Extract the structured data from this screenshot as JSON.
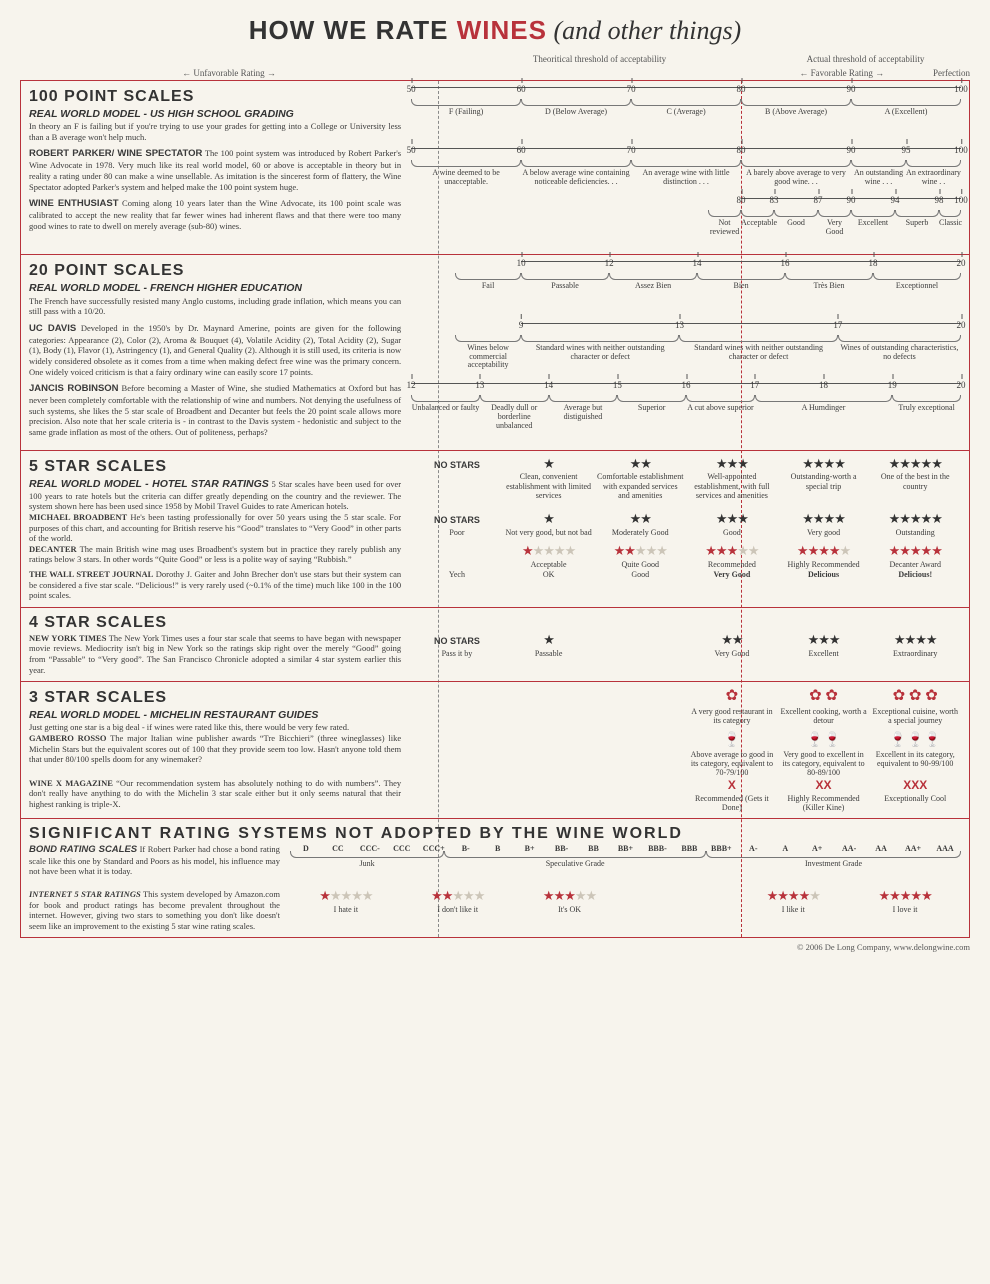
{
  "title_pre": "HOW WE RATE ",
  "title_red": "WINES",
  "title_post": " (and other things)",
  "legend": {
    "unfav": "← Unfavorable Rating →",
    "theory": "Theoritical threshold of acceptability",
    "actual": "Actual threshold of acceptability",
    "fav": "← Favorable Rating →",
    "perf": "Perfection"
  },
  "layout": {
    "theory_pct": 44,
    "actual_pct": 76
  },
  "s100": {
    "head": "100 POINT SCALES",
    "model": "REAL WORLD MODEL - US HIGH SCHOOL GRADING",
    "model_desc": "In theory an F is failing but if you're trying to use your grades for getting into a College or University less than a B average won't help much.",
    "hs": {
      "ticks": [
        {
          "v": "50",
          "p": 0
        },
        {
          "v": "60",
          "p": 20
        },
        {
          "v": "70",
          "p": 40
        },
        {
          "v": "80",
          "p": 60
        },
        {
          "v": "90",
          "p": 80
        },
        {
          "v": "100",
          "p": 100
        }
      ],
      "brackets": [
        {
          "l": "F (Failing)",
          "from": 0,
          "to": 20
        },
        {
          "l": "D (Below Average)",
          "from": 20,
          "to": 40
        },
        {
          "l": "C (Average)",
          "from": 40,
          "to": 60
        },
        {
          "l": "B (Above Average)",
          "from": 60,
          "to": 80
        },
        {
          "l": "A (Excellent)",
          "from": 80,
          "to": 100
        }
      ]
    },
    "parker": {
      "name": "ROBERT PARKER/ WINE SPECTATOR",
      "desc": "The 100 point system was introduced by Robert Parker's Wine Advocate in 1978. Very much like its real world model, 60 or above is acceptable in theory but in reality a rating under 80 can make a wine unsellable. As imitation is the sincerest form of flattery, the Wine Spectator adopted Parker's system and helped make the 100 point system huge.",
      "ticks": [
        {
          "v": "50",
          "p": 0
        },
        {
          "v": "60",
          "p": 20
        },
        {
          "v": "70",
          "p": 40
        },
        {
          "v": "80",
          "p": 60
        },
        {
          "v": "90",
          "p": 80
        },
        {
          "v": "95",
          "p": 90
        },
        {
          "v": "100",
          "p": 100
        }
      ],
      "brackets": [
        {
          "l": "A wine deemed to be unacceptable.",
          "from": 0,
          "to": 20
        },
        {
          "l": "A below average wine containing noticeable deficiencies. . .",
          "from": 20,
          "to": 40
        },
        {
          "l": "An average wine with little distinction . . .",
          "from": 40,
          "to": 60
        },
        {
          "l": "A barely above average to very good wine. . .",
          "from": 60,
          "to": 80
        },
        {
          "l": "An outstanding wine . . .",
          "from": 80,
          "to": 90
        },
        {
          "l": "An extraordinary wine . .",
          "from": 90,
          "to": 100
        }
      ]
    },
    "we": {
      "name": "WINE ENTHUSIAST",
      "desc": "Coming along 10 years later than the Wine Advocate, its 100 point scale was calibrated to accept the new reality that far fewer wines had inherent flaws and that there were too many good wines to rate to dwell on merely average (sub-80) wines.",
      "ticks": [
        {
          "v": "80",
          "p": 0
        },
        {
          "v": "83",
          "p": 15
        },
        {
          "v": "87",
          "p": 35
        },
        {
          "v": "90",
          "p": 50
        },
        {
          "v": "94",
          "p": 70
        },
        {
          "v": "98",
          "p": 90
        },
        {
          "v": "100",
          "p": 100
        }
      ],
      "brackets": [
        {
          "l": "Not reviewed",
          "from": -15,
          "to": 0
        },
        {
          "l": "Acceptable",
          "from": 0,
          "to": 15
        },
        {
          "l": "Good",
          "from": 15,
          "to": 35
        },
        {
          "l": "Very Good",
          "from": 35,
          "to": 50
        },
        {
          "l": "Excellent",
          "from": 50,
          "to": 70
        },
        {
          "l": "Superb",
          "from": 70,
          "to": 90
        },
        {
          "l": "Classic",
          "from": 90,
          "to": 100
        }
      ]
    }
  },
  "s20": {
    "head": "20 POINT SCALES",
    "model": "REAL WORLD MODEL - FRENCH HIGHER EDUCATION",
    "model_desc": "The French have successfully resisted many Anglo customs, including grade inflation, which means you can still pass with a 10/20.",
    "french": {
      "ticks": [
        {
          "v": "10",
          "p": 0
        },
        {
          "v": "12",
          "p": 20
        },
        {
          "v": "14",
          "p": 40
        },
        {
          "v": "16",
          "p": 60
        },
        {
          "v": "18",
          "p": 80
        },
        {
          "v": "20",
          "p": 100
        }
      ],
      "brackets": [
        {
          "l": "Fail",
          "from": -15,
          "to": 0
        },
        {
          "l": "Passable",
          "from": 0,
          "to": 20
        },
        {
          "l": "Assez Bien",
          "from": 20,
          "to": 40
        },
        {
          "l": "Bien",
          "from": 40,
          "to": 60
        },
        {
          "l": "Très Bien",
          "from": 60,
          "to": 80
        },
        {
          "l": "Exceptionnel",
          "from": 80,
          "to": 100
        }
      ]
    },
    "davis": {
      "name": "UC DAVIS",
      "desc": "Developed in the 1950's by Dr. Maynard Amerine, points are given for the following categories: Appearance (2), Color (2), Aroma & Bouquet (4), Volatile Acidity (2), Total Acidity (2), Sugar (1), Body (1), Flavor (1), Astringency (1), and General Quality (2). Although it is still used, its criteria is now widely considered obsolete as it comes from a time when making defect free wine was the primary concern. One widely voiced criticism is that a fairy ordinary wine can easily score 17 points.",
      "ticks": [
        {
          "v": "9",
          "p": 0
        },
        {
          "v": "13",
          "p": 36
        },
        {
          "v": "17",
          "p": 72
        },
        {
          "v": "20",
          "p": 100
        }
      ],
      "brackets": [
        {
          "l": "Wines below commercial acceptability",
          "from": -15,
          "to": 0
        },
        {
          "l": "Standard wines with neither outstanding character or defect",
          "from": 0,
          "to": 36
        },
        {
          "l": "Standard wines with neither outstanding character or defect",
          "from": 36,
          "to": 72
        },
        {
          "l": "Wines of outstanding characteristics, no defects",
          "from": 72,
          "to": 100
        }
      ]
    },
    "jancis": {
      "name": "JANCIS ROBINSON",
      "desc": "Before becoming a Master of Wine, she studied Mathematics at Oxford but has never been completely comfortable with the relationship of wine and numbers. Not denying the usefulness of such systems, she likes the 5 star scale of Broadbent and Decanter but feels the 20 point scale allows more precision. Also note that her scale criteria is - in contrast to the Davis system - hedonistic and subject to the same grade inflation as most of the others. Out of politeness, perhaps?",
      "ticks": [
        {
          "v": "12",
          "p": 0
        },
        {
          "v": "13",
          "p": 12.5
        },
        {
          "v": "14",
          "p": 25
        },
        {
          "v": "15",
          "p": 37.5
        },
        {
          "v": "16",
          "p": 50
        },
        {
          "v": "17",
          "p": 62.5
        },
        {
          "v": "18",
          "p": 75
        },
        {
          "v": "19",
          "p": 87.5
        },
        {
          "v": "20",
          "p": 100
        }
      ],
      "brackets": [
        {
          "l": "Unbalanced or faulty",
          "from": 0,
          "to": 12.5
        },
        {
          "l": "Deadly dull or borderline unbalanced",
          "from": 12.5,
          "to": 25
        },
        {
          "l": "Average but distiguished",
          "from": 25,
          "to": 37.5
        },
        {
          "l": "Superior",
          "from": 37.5,
          "to": 50
        },
        {
          "l": "A cut above superior",
          "from": 50,
          "to": 62.5
        },
        {
          "l": "A Humdinger",
          "from": 62.5,
          "to": 87.5
        },
        {
          "l": "Truly exceptional",
          "from": 87.5,
          "to": 100
        }
      ]
    }
  },
  "s5": {
    "head": "5 STAR SCALES",
    "model": "REAL WORLD MODEL - HOTEL STAR RATINGS",
    "model_desc": "5 Star scales have been used for over 100 years to rate hotels but the criteria can differ greatly depending on the country and the reviewer. The system shown here has been used since 1958 by Mobil Travel Guides to rate American hotels.",
    "hotel": [
      {
        "s": "NO STARS",
        "l": ""
      },
      {
        "s": "★",
        "l": "Clean, convenient establishment with limited services"
      },
      {
        "s": "★★",
        "l": "Comfortable establishment with expanded services and amenities"
      },
      {
        "s": "★★★",
        "l": "Well-appointed establishment, with full services and amenities"
      },
      {
        "s": "★★★★",
        "l": "Outstanding-worth a special trip"
      },
      {
        "s": "★★★★★",
        "l": "One of the best in the country"
      }
    ],
    "broadbent": {
      "name": "MICHAEL BROADBENT",
      "desc": "He's been tasting professionally for over 50 years using the 5 star scale. For purposes of this chart, and accounting for British reserve his “Good” translates to “Very Good” in other parts of the world.",
      "cells": [
        {
          "s": "NO STARS",
          "l": "Poor"
        },
        {
          "s": "★",
          "l": "Not very good, but not bad"
        },
        {
          "s": "★★",
          "l": "Moderately Good"
        },
        {
          "s": "★★★",
          "l": "Good"
        },
        {
          "s": "★★★★",
          "l": "Very good"
        },
        {
          "s": "★★★★★",
          "l": "Outstanding"
        }
      ]
    },
    "decanter": {
      "name": "DECANTER",
      "desc": "The main British wine mag uses Broadbent's system but in practice they rarely publish any ratings below 3 stars. In other words “Quite Good” or less is a polite way of saying “Rubbish.”",
      "cells": [
        {
          "s": "",
          "l": ""
        },
        {
          "s": "★____",
          "l": "Acceptable"
        },
        {
          "s": "★★___",
          "l": "Quite Good"
        },
        {
          "s": "★★★__",
          "l": "Recommended"
        },
        {
          "s": "★★★★_",
          "l": "Highly Recommended"
        },
        {
          "s": "★★★★★",
          "l": "Decanter Award"
        }
      ],
      "red": true
    },
    "wsj": {
      "name": "THE WALL STREET JOURNAL",
      "desc": "Dorothy J. Gaiter and John Brecher don't use stars but their system can be considered a five star scale. “Delicious!” is very rarely used (~0.1% of the time) much like 100 in the 100 point scales.",
      "cells": [
        {
          "s": "",
          "l": "Yech"
        },
        {
          "s": "",
          "l": "OK"
        },
        {
          "s": "",
          "l": "Good"
        },
        {
          "s": "",
          "l": "Very Good",
          "bold": true
        },
        {
          "s": "",
          "l": "Delicious",
          "bold": true
        },
        {
          "s": "",
          "l": "Delicious!",
          "bold": true
        }
      ]
    }
  },
  "s4": {
    "head": "4 STAR SCALES",
    "nyt": {
      "name": "NEW YORK TIMES",
      "desc": "The New York Times uses a four star scale that seems to have began with newspaper movie reviews. Mediocrity isn't big in New York so the ratings skip right over the merely “Good” going from “Passable” to “Very good”. The San Francisco Chronicle adopted a similar 4 star system earlier this year.",
      "cells": [
        {
          "s": "NO STARS",
          "l": "Pass it by"
        },
        {
          "s": "★",
          "l": "Passable"
        },
        {
          "s": "",
          "l": ""
        },
        {
          "s": "★★",
          "l": "Very Good"
        },
        {
          "s": "★★★",
          "l": "Excellent"
        },
        {
          "s": "★★★★",
          "l": "Extraordinary"
        }
      ]
    }
  },
  "s3": {
    "head": "3 STAR SCALES",
    "model": "REAL WORLD MODEL - MICHELIN RESTAURANT GUIDES",
    "model_desc": "Just getting one star is a big deal - if wines were rated like this, there would be very few rated.",
    "michelin": [
      {
        "s": "",
        "l": ""
      },
      {
        "s": "",
        "l": ""
      },
      {
        "s": "",
        "l": ""
      },
      {
        "s": "✿",
        "l": "A very good restaurant in its category"
      },
      {
        "s": "✿ ✿",
        "l": "Excellent cooking, worth a detour"
      },
      {
        "s": "✿ ✿ ✿",
        "l": "Exceptional cuisine, worth a special journey"
      }
    ],
    "gambero": {
      "name": "GAMBERO ROSSO",
      "desc": "The major Italian wine publisher awards “Tre Bicchieri” (three wineglasses) like Michelin Stars but the equivalent scores out of 100 that they provide seem too low. Hasn't anyone told them that under 80/100 spells doom for any winemaker?",
      "cells": [
        {
          "s": "",
          "l": ""
        },
        {
          "s": "",
          "l": ""
        },
        {
          "s": "",
          "l": ""
        },
        {
          "s": "🍷",
          "l": "Above average to good in its category, equivalent to 70-79/100"
        },
        {
          "s": "🍷🍷",
          "l": "Very good to excellent in its category, equivalent to 80-89/100"
        },
        {
          "s": "🍷🍷🍷",
          "l": "Excellent in its category, equivalent to 90-99/100"
        }
      ]
    },
    "winex": {
      "name": "WINE X MAGAZINE",
      "desc": "“Our recommendation system has absolutely nothing to do with numbers”. They don't really have anything to do with the Michelin 3 star scale either but it only seems natural that their highest ranking is triple-X.",
      "cells": [
        {
          "s": "",
          "l": ""
        },
        {
          "s": "",
          "l": ""
        },
        {
          "s": "",
          "l": ""
        },
        {
          "s": "X",
          "l": "Recommended (Gets it Done)"
        },
        {
          "s": "XX",
          "l": "Highly Recommended (Killer Kine)"
        },
        {
          "s": "XXX",
          "l": "Exceptionally Cool"
        }
      ]
    }
  },
  "sig": {
    "head": "SIGNIFICANT RATING SYSTEMS NOT ADOPTED BY THE WINE WORLD",
    "bond": {
      "name": "BOND RATING SCALES",
      "desc": "If Robert Parker had chose a bond rating scale like this one by Standard and Poors as his model, his influence may not have been what it is today.",
      "ticks": [
        "D",
        "CC",
        "CCC-",
        "CCC",
        "CCC+",
        "B-",
        "B",
        "B+",
        "BB-",
        "BB",
        "BB+",
        "BBB-",
        "BBB",
        "BBB+",
        "A-",
        "A",
        "A+",
        "AA-",
        "AA",
        "AA+",
        "AAA"
      ],
      "brackets": [
        {
          "l": "Junk",
          "from": 0,
          "to": 23
        },
        {
          "l": "Speculative Grade",
          "from": 23,
          "to": 62
        },
        {
          "l": "Investment Grade",
          "from": 62,
          "to": 100
        }
      ]
    },
    "amazon": {
      "name": "INTERNET 5 STAR RATINGS",
      "desc": "This system developed by Amazon.com for book and product ratings has become prevalent throughout the internet. However, giving two stars to something you don't like doesn't seem like an improvement to the existing 5 star wine rating scales.",
      "cells": [
        {
          "s": "★____",
          "l": "I hate it"
        },
        {
          "s": "★★___",
          "l": "I don't like it"
        },
        {
          "s": "★★★__",
          "l": "It's OK"
        },
        {
          "s": "",
          "l": ""
        },
        {
          "s": "★★★★_",
          "l": "I like it"
        },
        {
          "s": "★★★★★",
          "l": "I love it"
        }
      ]
    }
  },
  "footer": "© 2006 De Long Company, www.delongwine.com"
}
